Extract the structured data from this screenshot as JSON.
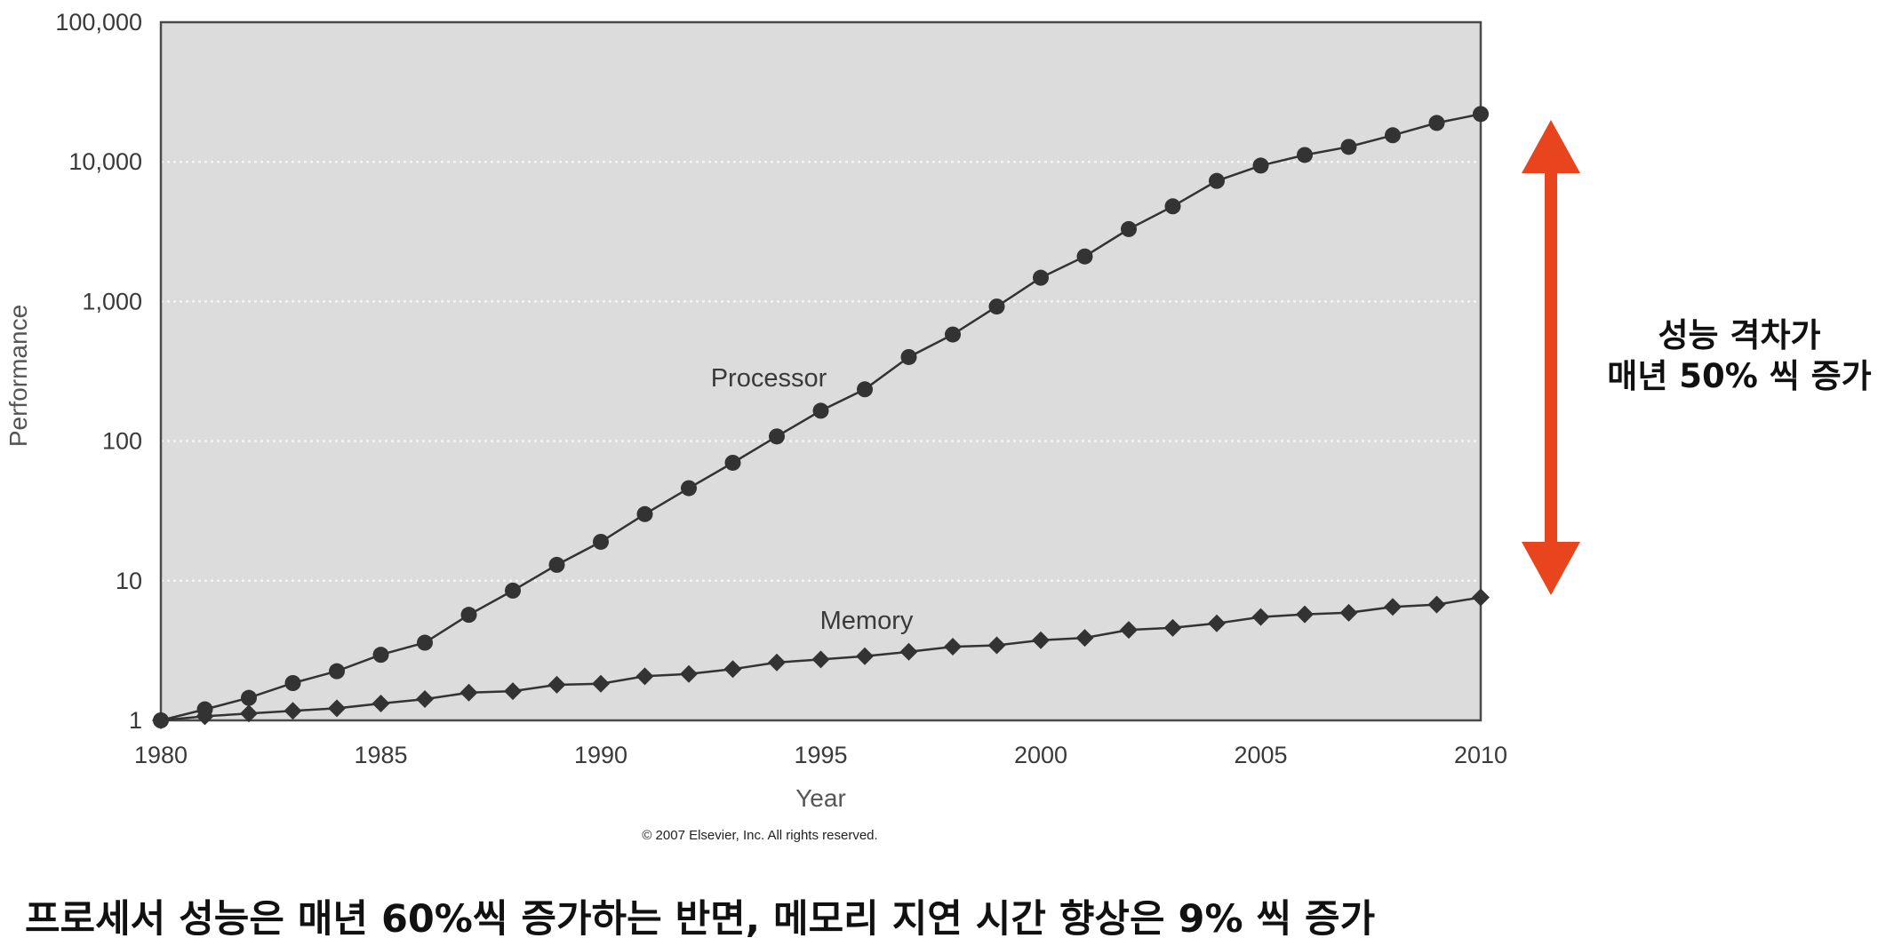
{
  "chart_data": {
    "type": "line",
    "title": "",
    "xlabel": "Year",
    "ylabel": "Performance",
    "x_range": [
      1980,
      2010
    ],
    "y_range": [
      1,
      100000
    ],
    "y_scale": "log",
    "x_ticks": [
      1980,
      1985,
      1990,
      1995,
      2000,
      2005,
      2010
    ],
    "x_tick_labels": [
      "1980",
      "1985",
      "1990",
      "1995",
      "2000",
      "2005",
      "2010"
    ],
    "y_ticks": [
      1,
      10,
      100,
      1000,
      10000,
      100000
    ],
    "y_tick_labels": [
      "1",
      "10",
      "100",
      "1,000",
      "10,000",
      "100,000"
    ],
    "grid": "horizontal dotted",
    "plot_background": "#dcdcdc",
    "series_color": "#333333",
    "x": [
      1980,
      1981,
      1982,
      1983,
      1984,
      1985,
      1986,
      1987,
      1988,
      1989,
      1990,
      1991,
      1992,
      1993,
      1994,
      1995,
      1996,
      1997,
      1998,
      1999,
      2000,
      2001,
      2002,
      2003,
      2004,
      2005,
      2006,
      2007,
      2008,
      2009,
      2010
    ],
    "series": [
      {
        "name": "Processor",
        "marker": "circle",
        "values": [
          1,
          1.2,
          1.45,
          1.85,
          2.25,
          2.95,
          3.6,
          5.7,
          8.5,
          13,
          19,
          30,
          46,
          70,
          108,
          165,
          235,
          400,
          580,
          920,
          1480,
          2100,
          3300,
          4800,
          7300,
          9400,
          11200,
          12800,
          15500,
          19000,
          22000
        ]
      },
      {
        "name": "Memory",
        "marker": "diamond",
        "values": [
          1,
          1.07,
          1.12,
          1.17,
          1.22,
          1.32,
          1.42,
          1.58,
          1.62,
          1.8,
          1.83,
          2.07,
          2.15,
          2.33,
          2.6,
          2.73,
          2.88,
          3.1,
          3.37,
          3.45,
          3.75,
          3.9,
          4.45,
          4.6,
          4.95,
          5.5,
          5.75,
          5.9,
          6.5,
          6.75,
          7.6
        ]
      }
    ],
    "copyright": "© 2007 Elsevier, Inc. All rights reserved.",
    "annotation": {
      "color": "#e8451e",
      "lines": [
        "성능 격차가",
        "매년 50% 씩 증가"
      ]
    }
  },
  "caption": "프로세서 성능은 매년 60%씩 증가하는 반면, 메모리 지연 시간 향상은 9% 씩 증가"
}
